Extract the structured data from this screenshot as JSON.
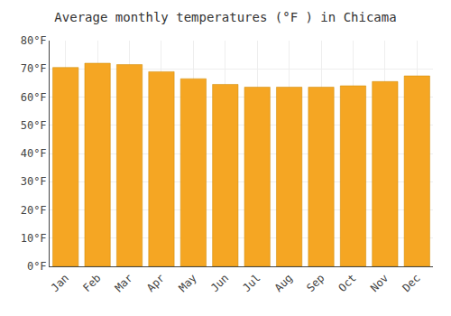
{
  "chart_data": {
    "type": "bar",
    "title": "Average monthly temperatures (°F ) in Chicama",
    "categories": [
      "Jan",
      "Feb",
      "Mar",
      "Apr",
      "May",
      "Jun",
      "Jul",
      "Aug",
      "Sep",
      "Oct",
      "Nov",
      "Dec"
    ],
    "values": [
      70.5,
      72.0,
      71.5,
      69.0,
      66.5,
      64.5,
      63.5,
      63.5,
      63.5,
      64.0,
      65.5,
      67.5
    ],
    "color": "#F5A623",
    "ylim": [
      0,
      80
    ],
    "yticks": [
      {
        "value": 0,
        "label": "0°F"
      },
      {
        "value": 10,
        "label": "10°F"
      },
      {
        "value": 20,
        "label": "20°F"
      },
      {
        "value": 30,
        "label": "30°F"
      },
      {
        "value": 40,
        "label": "40°F"
      },
      {
        "value": 50,
        "label": "50°F"
      },
      {
        "value": 60,
        "label": "60°F"
      },
      {
        "value": 70,
        "label": "70°F"
      },
      {
        "value": 80,
        "label": "80°F"
      }
    ],
    "grid": true
  }
}
